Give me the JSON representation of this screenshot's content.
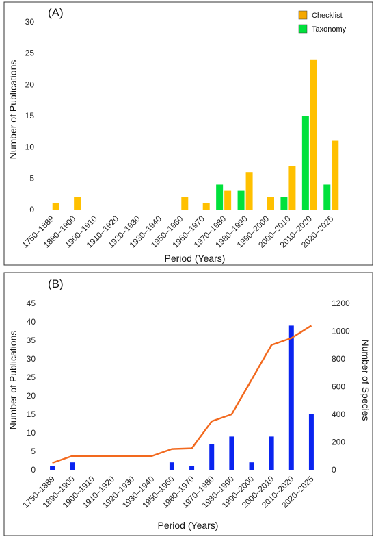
{
  "chart_data": [
    {
      "type": "bar",
      "panel_label": "(A)",
      "categories": [
        "1750–1889",
        "1890–1900",
        "1900–1910",
        "1910–1920",
        "1920–1930",
        "1930–1940",
        "1950–1960",
        "1960–1970",
        "1970–1980",
        "1980–1990",
        "1990–2000",
        "2000–2010",
        "2010–2020",
        "2020–2025"
      ],
      "series": [
        {
          "name": "Taxonomy",
          "color": "#00e13c",
          "values": [
            0,
            0,
            0,
            0,
            0,
            0,
            0,
            0,
            4,
            3,
            0,
            2,
            15,
            4
          ]
        },
        {
          "name": "Checklist",
          "color": "#ffc000",
          "values": [
            1,
            2,
            0,
            0,
            0,
            0,
            2,
            1,
            3,
            6,
            2,
            7,
            24,
            11
          ]
        }
      ],
      "xlabel": "Period (Years)",
      "ylabel": "Number of Publications",
      "ylim": [
        0,
        30
      ],
      "yticks": [
        0,
        5,
        10,
        15,
        20,
        25,
        30
      ],
      "legend": {
        "position": "top-right",
        "entries": [
          "Checklist",
          "Taxonomy"
        ],
        "colors": [
          "#f5a800",
          "#00e13c"
        ]
      }
    },
    {
      "type": "bar+line",
      "panel_label": "(B)",
      "categories": [
        "1750–1889",
        "1890–1900",
        "1900–1910",
        "1910–1920",
        "1920–1930",
        "1930–1940",
        "1950–1960",
        "1960–1970",
        "1970–1980",
        "1980–1990",
        "1990–2000",
        "2000–2010",
        "2010–2020",
        "2020–2025"
      ],
      "bar_series": {
        "color": "#0a24f0",
        "values": [
          1,
          2,
          0,
          0,
          0,
          0,
          2,
          1,
          7,
          9,
          2,
          9,
          39,
          15
        ]
      },
      "line_series": {
        "color": "#f2691e",
        "values": [
          50,
          100,
          100,
          100,
          100,
          100,
          150,
          155,
          350,
          400,
          650,
          900,
          950,
          1040
        ]
      },
      "xlabel": "Period (Years)",
      "ylabel": "Number of Publications",
      "y2label": "Number of Species",
      "ylim": [
        0,
        45
      ],
      "yticks": [
        0,
        5,
        10,
        15,
        20,
        25,
        30,
        35,
        40,
        45
      ],
      "y2lim": [
        0,
        1200
      ],
      "y2ticks": [
        0,
        200,
        400,
        600,
        800,
        1000,
        1200
      ]
    }
  ]
}
